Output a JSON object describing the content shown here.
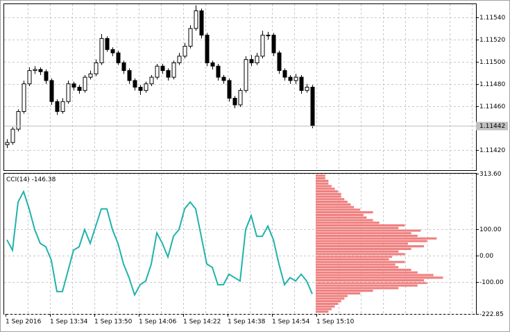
{
  "chart_data": [
    {
      "type": "candlestick",
      "open": [
        1.11425,
        1.11427,
        1.11439,
        1.11455,
        1.1148,
        1.11492,
        1.11493,
        1.11491,
        1.11483,
        1.11464,
        1.11455,
        1.11464,
        1.1148,
        1.11477,
        1.11474,
        1.11486,
        1.11489,
        1.11499,
        1.11521,
        1.11511,
        1.11508,
        1.11499,
        1.11492,
        1.11483,
        1.11477,
        1.11474,
        1.1148,
        1.11486,
        1.11496,
        1.11492,
        1.11486,
        1.11499,
        1.11505,
        1.11514,
        1.1153,
        1.11546,
        1.11524,
        1.11499,
        1.11496,
        1.11486,
        1.11483,
        1.11467,
        1.11461,
        1.11474,
        1.11502,
        1.11499,
        1.11505,
        1.11524,
        1.11524,
        1.11508,
        1.11492,
        1.11486,
        1.11483,
        1.11486,
        1.11474,
        1.11477
      ],
      "high": [
        1.1143,
        1.11441,
        1.11457,
        1.11483,
        1.11495,
        1.11496,
        1.11495,
        1.11493,
        1.11485,
        1.11466,
        1.11467,
        1.11483,
        1.11482,
        1.11479,
        1.11488,
        1.11492,
        1.11502,
        1.11525,
        1.11523,
        1.11513,
        1.1151,
        1.11501,
        1.11494,
        1.11485,
        1.11479,
        1.11482,
        1.11488,
        1.11498,
        1.11498,
        1.11494,
        1.11501,
        1.11508,
        1.11517,
        1.11533,
        1.11551,
        1.11548,
        1.11526,
        1.11501,
        1.11498,
        1.11488,
        1.11485,
        1.11469,
        1.11476,
        1.11505,
        1.11506,
        1.11508,
        1.11528,
        1.11527,
        1.11526,
        1.1151,
        1.11494,
        1.11488,
        1.11489,
        1.11488,
        1.1148,
        1.11479
      ],
      "low": [
        1.11422,
        1.11425,
        1.11437,
        1.11453,
        1.11478,
        1.11489,
        1.11488,
        1.1148,
        1.11461,
        1.11452,
        1.11453,
        1.11462,
        1.11474,
        1.11471,
        1.11472,
        1.11484,
        1.11487,
        1.11497,
        1.11509,
        1.11505,
        1.11497,
        1.11489,
        1.1148,
        1.11474,
        1.1147,
        1.11472,
        1.11478,
        1.11484,
        1.11489,
        1.11483,
        1.11484,
        1.11497,
        1.11503,
        1.11512,
        1.11528,
        1.11521,
        1.11496,
        1.11493,
        1.11483,
        1.1148,
        1.11464,
        1.11458,
        1.11459,
        1.11472,
        1.11496,
        1.11497,
        1.11503,
        1.1152,
        1.11505,
        1.11489,
        1.11483,
        1.1148,
        1.1148,
        1.11471,
        1.11472,
        1.1144
      ],
      "close": [
        1.11427,
        1.11439,
        1.11455,
        1.1148,
        1.11492,
        1.11493,
        1.11491,
        1.11483,
        1.11464,
        1.11455,
        1.11464,
        1.1148,
        1.11477,
        1.11474,
        1.11486,
        1.11489,
        1.11499,
        1.11521,
        1.11511,
        1.11508,
        1.11499,
        1.11492,
        1.11483,
        1.11477,
        1.11474,
        1.1148,
        1.11486,
        1.11496,
        1.11492,
        1.11486,
        1.11499,
        1.11505,
        1.11514,
        1.1153,
        1.11546,
        1.11524,
        1.11499,
        1.11496,
        1.11486,
        1.11483,
        1.11467,
        1.11461,
        1.11474,
        1.11502,
        1.11499,
        1.11505,
        1.11524,
        1.11524,
        1.11508,
        1.11492,
        1.11486,
        1.11483,
        1.11486,
        1.11474,
        1.11477,
        1.11442
      ],
      "ylim": [
        1.11402,
        1.11552
      ],
      "yticks": [
        {
          "value": 1.1154,
          "label": "1.11540"
        },
        {
          "value": 1.1152,
          "label": "1.11520"
        },
        {
          "value": 1.115,
          "label": "1.11500"
        },
        {
          "value": 1.1148,
          "label": "1.11480"
        },
        {
          "value": 1.1146,
          "label": "1.11460"
        },
        {
          "value": 1.1142,
          "label": "1.11420"
        }
      ],
      "grid": true
    },
    {
      "type": "line",
      "name": "CCI(14)",
      "color": "#20b2aa",
      "values": [
        60.5,
        21,
        205,
        245,
        179,
        100,
        47,
        34,
        -18,
        -137,
        -137,
        -58,
        21,
        34,
        100,
        47,
        113,
        179,
        179,
        100,
        47,
        -32,
        -84,
        -150,
        -111,
        -97,
        -32,
        87,
        47,
        -5,
        74,
        100,
        179,
        205,
        179,
        74,
        -32,
        -45,
        -111,
        -111,
        -71,
        -84,
        -97,
        100,
        153,
        74,
        74,
        113,
        61,
        -32,
        -111,
        -84,
        -97,
        -71,
        -97,
        -146.38
      ],
      "ylim": [
        -222.85,
        313.6
      ],
      "yticks": [
        {
          "value": 313.6,
          "label": "313.60"
        },
        {
          "value": 100,
          "label": "100.00"
        },
        {
          "value": 0,
          "label": "0.00"
        },
        {
          "value": -100,
          "label": "-100.00"
        },
        {
          "value": -222.85,
          "label": "-222.85"
        }
      ],
      "time_labels": [
        "1 Sep 2016",
        "1 Sep 13:34",
        "1 Sep 13:50",
        "1 Sep 14:06",
        "1 Sep 14:22",
        "1 Sep 14:38",
        "1 Sep 14:54",
        "1 Sep 15:10"
      ],
      "grid": true
    },
    {
      "type": "histogram",
      "orientation": "horizontal",
      "color": "#f08080",
      "bins": [
        -220,
        -210,
        -200,
        -190,
        -180,
        -170,
        -160,
        -150,
        -140,
        -130,
        -120,
        -110,
        -100,
        -90,
        -80,
        -70,
        -60,
        -50,
        -40,
        -30,
        -20,
        -10,
        0,
        10,
        20,
        30,
        40,
        50,
        60,
        70,
        80,
        90,
        100,
        110,
        120,
        130,
        140,
        150,
        160,
        170,
        180,
        190,
        200,
        210,
        220,
        230,
        240,
        250,
        260,
        270,
        280,
        290,
        300,
        310
      ],
      "counts": [
        20,
        25,
        30,
        35,
        40,
        45,
        50,
        70,
        90,
        130,
        160,
        175,
        170,
        200,
        185,
        160,
        150,
        130,
        125,
        140,
        115,
        120,
        140,
        130,
        150,
        170,
        145,
        175,
        190,
        160,
        150,
        165,
        130,
        140,
        100,
        90,
        80,
        75,
        90,
        70,
        60,
        55,
        50,
        45,
        40,
        40,
        35,
        30,
        25,
        20,
        20,
        15,
        15
      ],
      "xlim": [
        0,
        230
      ]
    }
  ]
}
